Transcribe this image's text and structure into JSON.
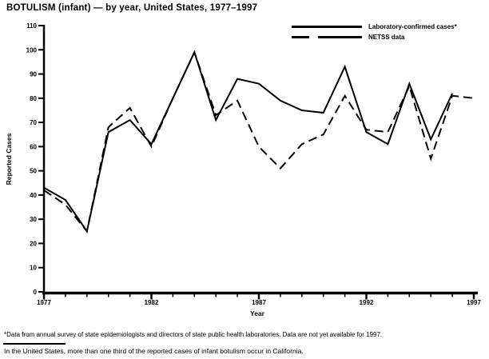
{
  "title": "BOTULISM (infant) — by year, United States, 1977–1997",
  "legend": {
    "items": [
      {
        "label": "Laboratory-confirmed cases*",
        "style": "solid"
      },
      {
        "label": "NETSS data",
        "style": "dashed"
      }
    ]
  },
  "chart_data": {
    "type": "line",
    "title": "BOTULISM (infant) — by year, United States, 1977–1997",
    "xlabel": "Year",
    "ylabel": "Reported Cases",
    "ylim": [
      0,
      110
    ],
    "ytick_interval": 10,
    "grid": false,
    "legend_position": "top-right",
    "x": [
      1977,
      1978,
      1979,
      1980,
      1981,
      1982,
      1983,
      1984,
      1985,
      1986,
      1987,
      1988,
      1989,
      1990,
      1991,
      1992,
      1993,
      1994,
      1995,
      1996,
      1997
    ],
    "xticks_labeled": [
      1977,
      1982,
      1987,
      1992,
      1997
    ],
    "series": [
      {
        "name": "Laboratory-confirmed cases*",
        "style": "solid",
        "values": [
          43,
          38,
          25,
          66,
          71,
          61,
          80,
          99,
          71,
          88,
          86,
          79,
          75,
          74,
          93,
          66,
          61,
          86,
          63,
          82,
          null
        ]
      },
      {
        "name": "NETSS data",
        "style": "dashed",
        "values": [
          42,
          36,
          25,
          68,
          76,
          60,
          80,
          99,
          73,
          79,
          60,
          51,
          61,
          65,
          81,
          67,
          66,
          85,
          55,
          81,
          80
        ]
      }
    ]
  },
  "footnotes": {
    "note1": "*Data from annual survey of state epidemiologists and directors of state public health laboratories. Data are not yet available for 1997.",
    "note2": "In the United States, more than one third of the reported cases of infant botulism occur in California."
  },
  "colors": {
    "line": "#000000",
    "background": "#ffffff"
  }
}
